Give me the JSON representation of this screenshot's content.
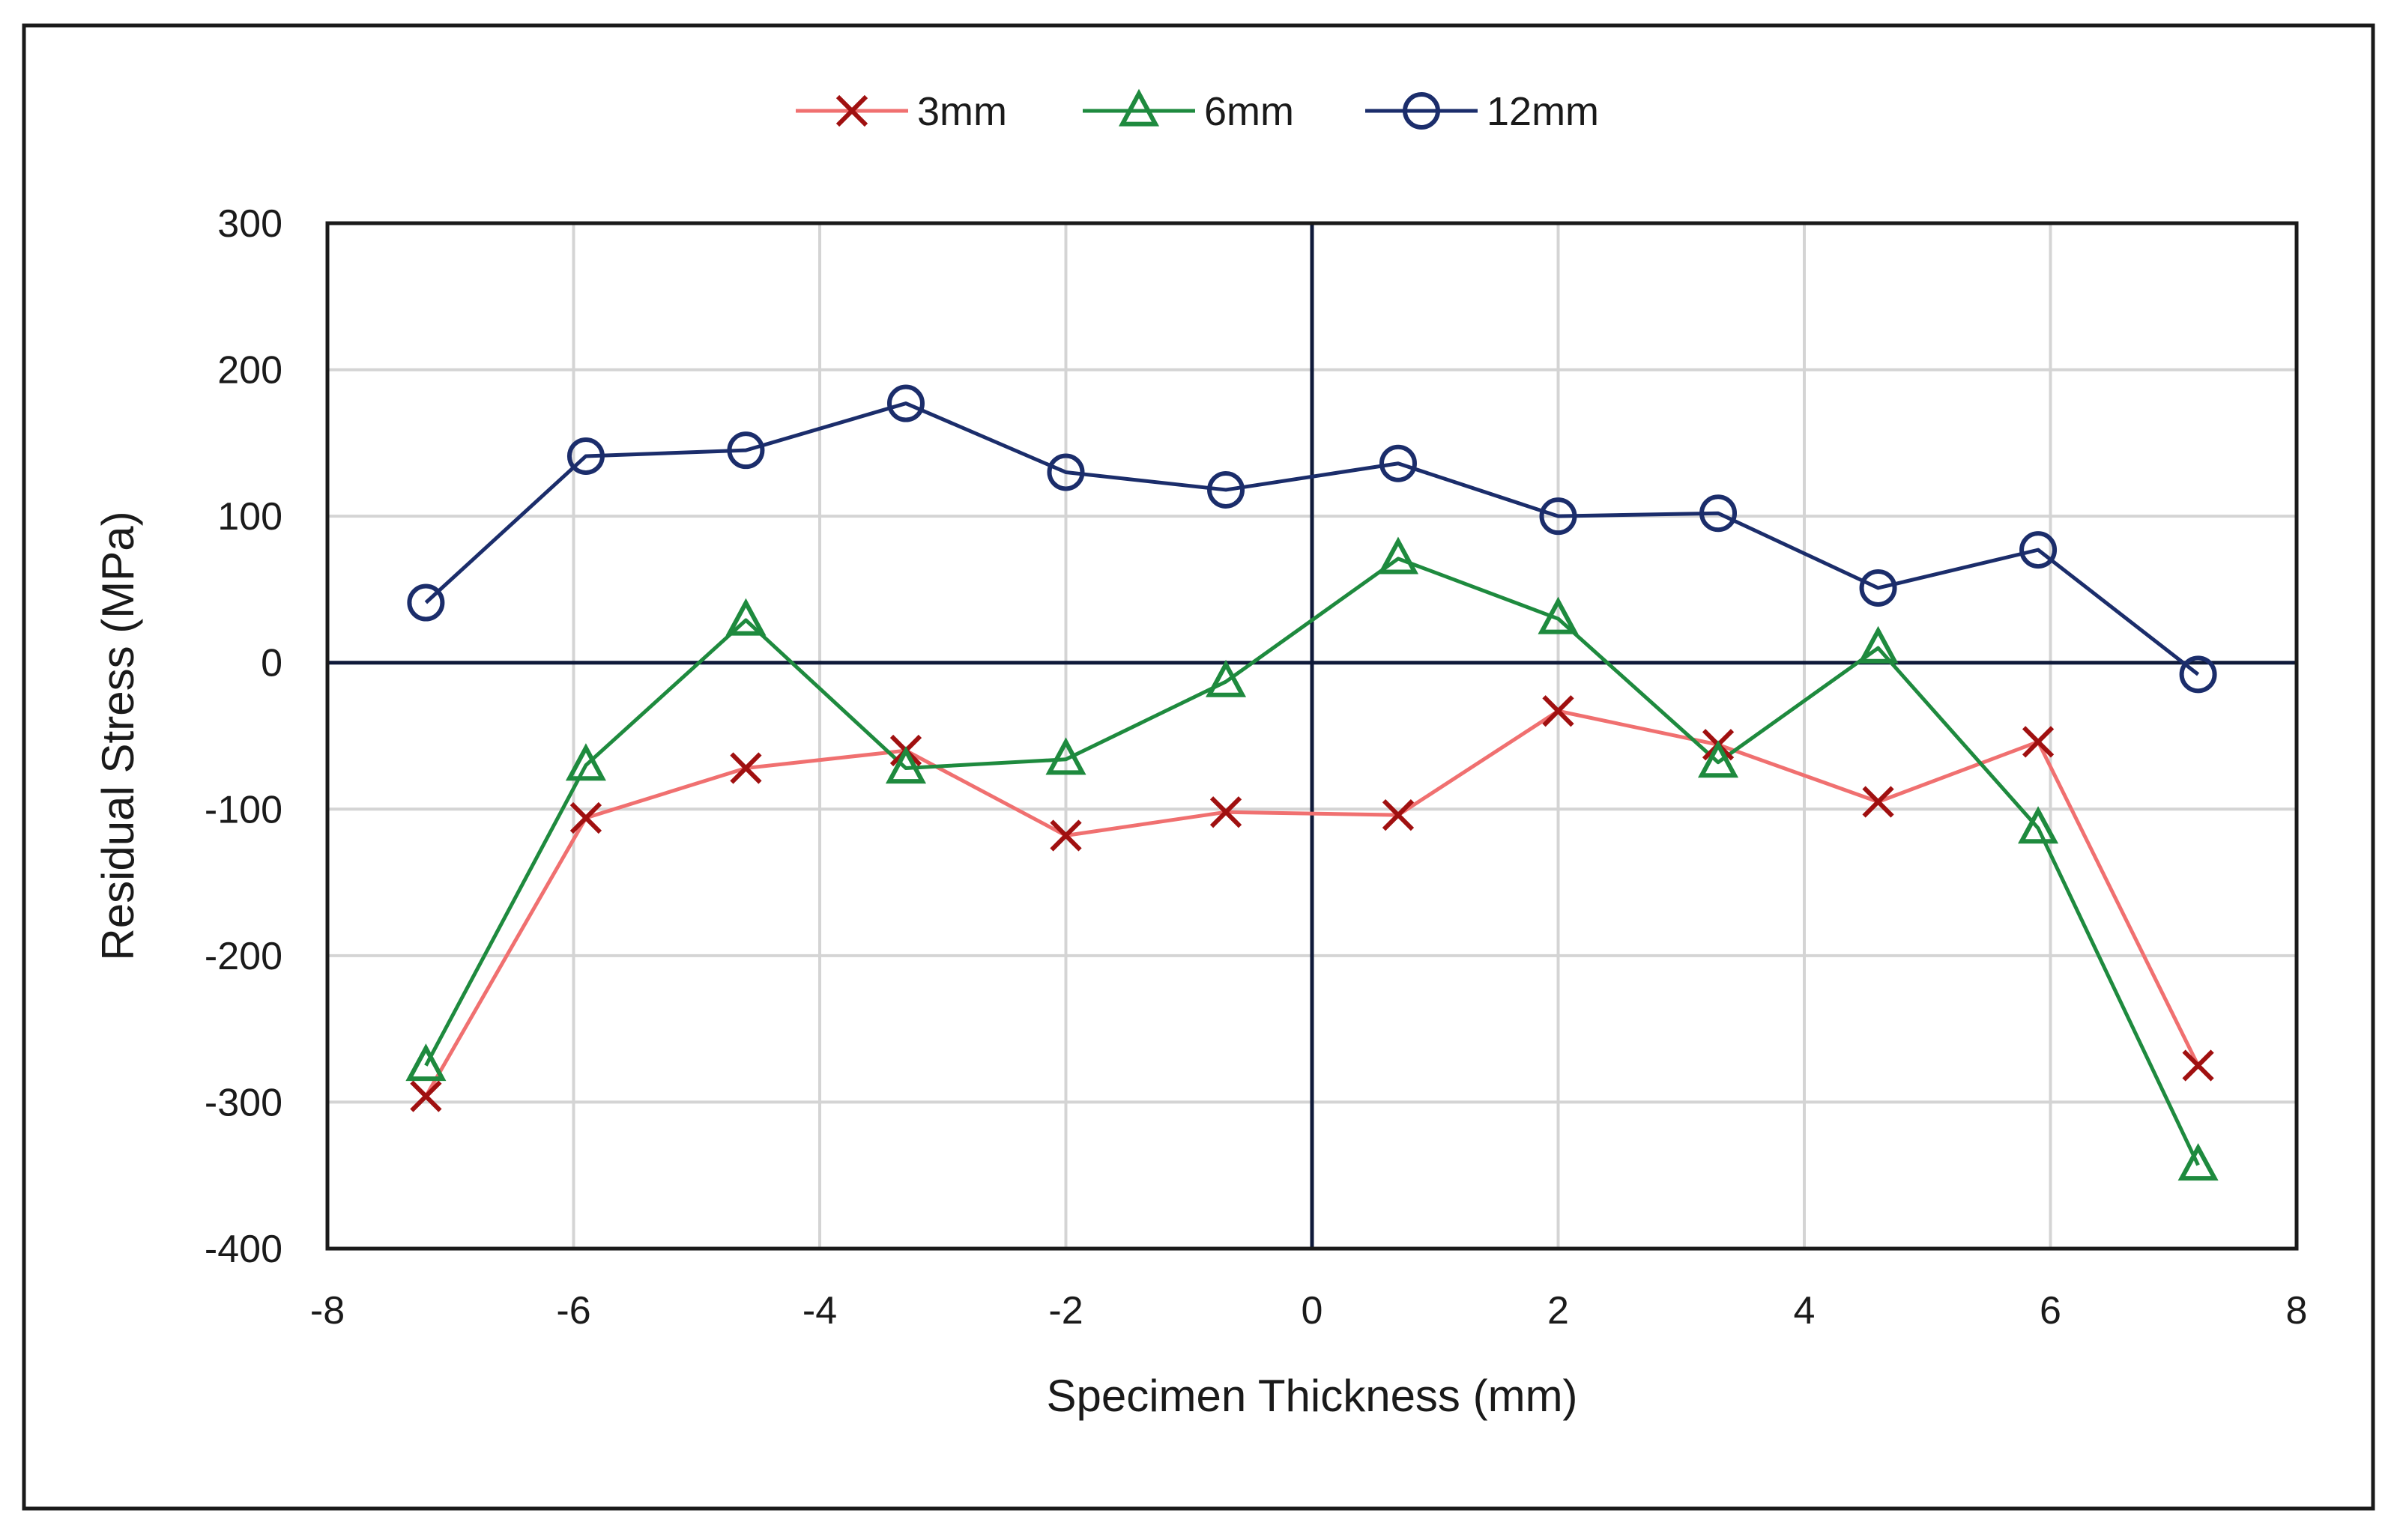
{
  "chart_data": {
    "type": "line",
    "title": "",
    "xlabel": "Specimen Thickness (mm)",
    "ylabel": "Residual Stress (MPa)",
    "xlim": [
      -8,
      8
    ],
    "ylim": [
      -400,
      300
    ],
    "xticks": [
      -8,
      -6,
      -4,
      -2,
      0,
      2,
      4,
      6,
      8
    ],
    "yticks": [
      300,
      200,
      100,
      0,
      -100,
      -200,
      -300,
      -400
    ],
    "grid": true,
    "legend": "top-center",
    "x": [
      -7.2,
      -5.9,
      -4.6,
      -3.3,
      -2.0,
      -0.7,
      0.7,
      2.0,
      3.3,
      4.6,
      5.9,
      7.2
    ],
    "series": [
      {
        "name": "3mm",
        "color": "#f07070",
        "marker": "x",
        "marker_color": "#a01010",
        "values": [
          -296,
          -106,
          -72,
          -60,
          -118,
          -102,
          -104,
          -33,
          -56,
          -95,
          -54,
          -275
        ]
      },
      {
        "name": "6mm",
        "color": "#1e8a3e",
        "marker": "triangle",
        "marker_color": "#1e8a3e",
        "values": [
          -275,
          -70,
          29,
          -72,
          -66,
          -13,
          71,
          30,
          -68,
          10,
          -113,
          -343
        ]
      },
      {
        "name": "12mm",
        "color": "#1b2d6b",
        "marker": "circle",
        "marker_color": "#1b2d6b",
        "values": [
          41,
          141,
          145,
          177,
          130,
          118,
          136,
          100,
          102,
          51,
          77,
          -8
        ]
      }
    ]
  }
}
